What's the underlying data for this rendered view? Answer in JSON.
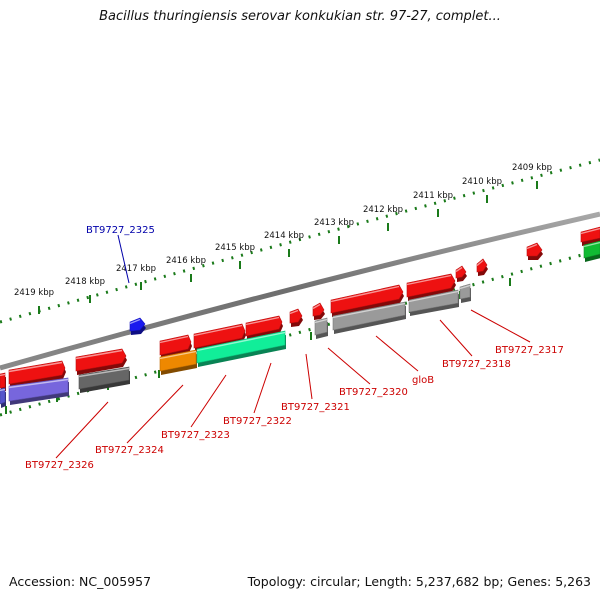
{
  "title": "Bacillus thuringiensis serovar konkukian str. 97-27, complet...",
  "footer": {
    "accession": "Accession: NC_005957",
    "summary": "Topology: circular; Length: 5,237,682 bp; Genes: 5,263"
  },
  "colors": {
    "backbone": "#7a7a7a",
    "tick_dots": "#1a7a1a",
    "label_red": "#cc0000",
    "label_blue": "#0000aa",
    "forward_cds": "#ee1111",
    "reverse_cds": "#9a9a9a",
    "blue_feature": "#1a1aee"
  },
  "scale_ticks": [
    {
      "label": "2419 kbp"
    },
    {
      "label": "2418 kbp"
    },
    {
      "label": "2417 kbp"
    },
    {
      "label": "2416 kbp"
    },
    {
      "label": "2415 kbp"
    },
    {
      "label": "2414 kbp"
    },
    {
      "label": "2413 kbp"
    },
    {
      "label": "2412 kbp"
    },
    {
      "label": "2411 kbp"
    },
    {
      "label": "2410 kbp"
    },
    {
      "label": "2409 kbp"
    }
  ],
  "gene_labels": [
    {
      "name": "BT9727_2325",
      "color": "blue"
    },
    {
      "name": "BT9727_2326",
      "color": "red"
    },
    {
      "name": "BT9727_2324",
      "color": "red"
    },
    {
      "name": "BT9727_2323",
      "color": "red"
    },
    {
      "name": "BT9727_2322",
      "color": "red"
    },
    {
      "name": "BT9727_2321",
      "color": "red"
    },
    {
      "name": "BT9727_2320",
      "color": "red"
    },
    {
      "name": "gloB",
      "color": "red"
    },
    {
      "name": "BT9727_2318",
      "color": "red"
    },
    {
      "name": "BT9727_2317",
      "color": "red"
    }
  ]
}
